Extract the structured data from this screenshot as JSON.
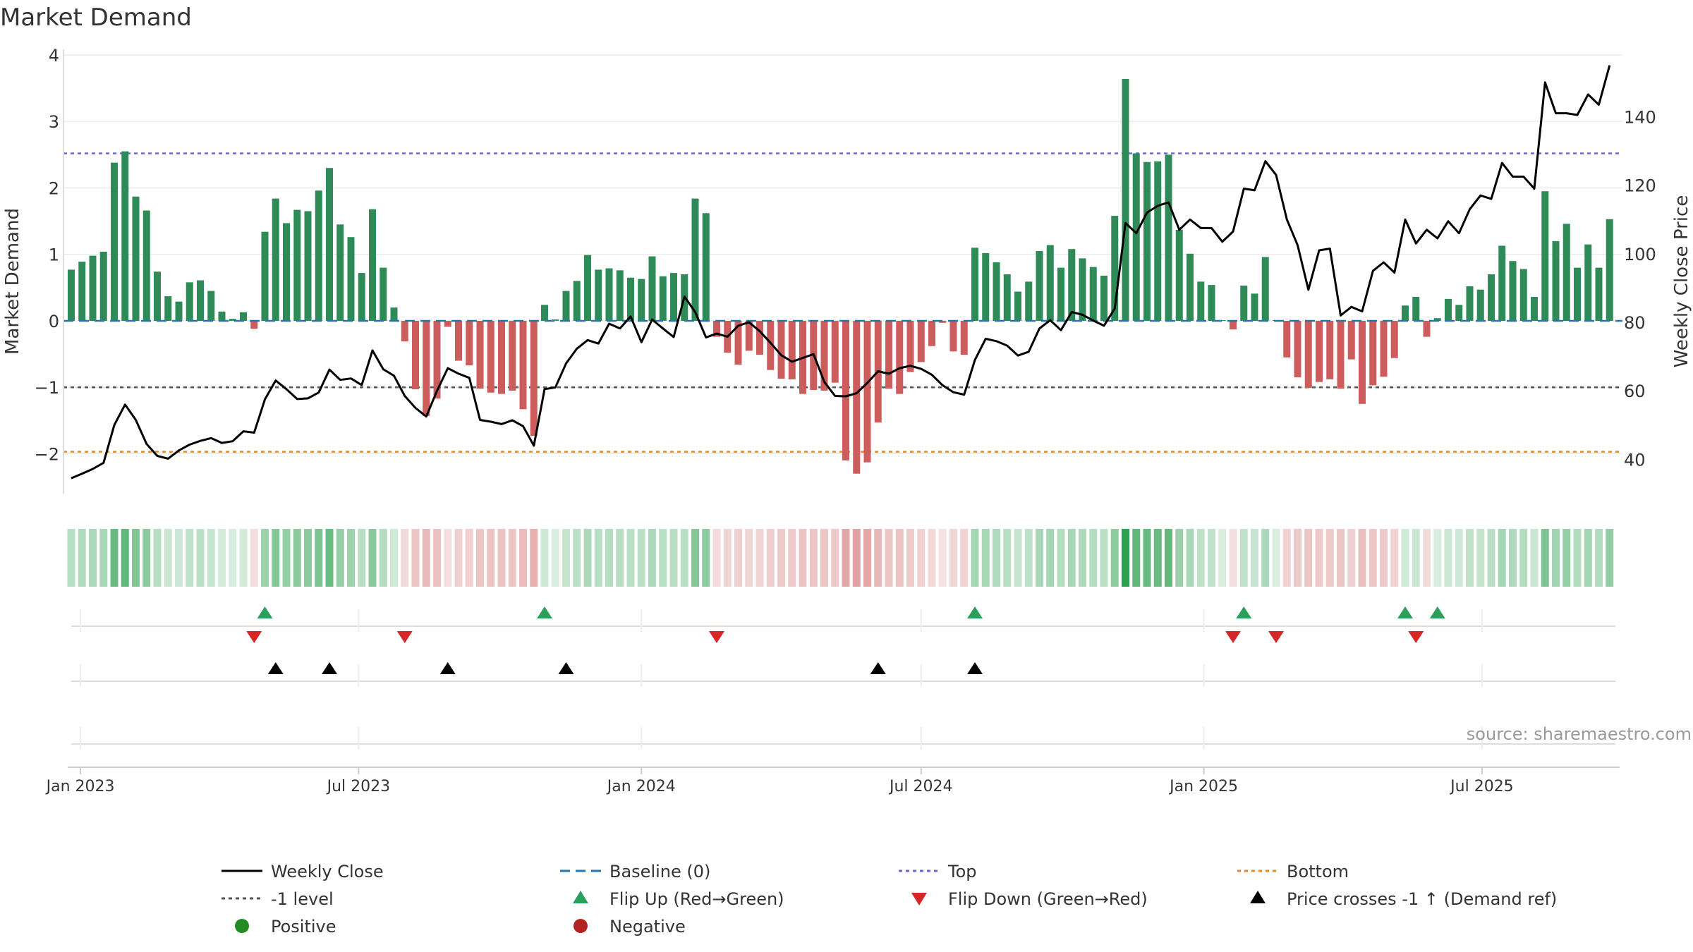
{
  "chart_data": {
    "type": "bar",
    "title": "Market Demand",
    "ylabel": "Market Demand",
    "y2label": "Weekly Close Price",
    "ylim": [
      -2.6,
      4.0
    ],
    "y2lim": [
      30,
      158
    ],
    "yticks": [
      -2,
      -1,
      0,
      1,
      2,
      3,
      4
    ],
    "y2ticks": [
      40,
      60,
      80,
      100,
      120,
      140
    ],
    "x_start": "2022-12-26",
    "x_step_days": 7,
    "x_tick_labels": [
      {
        "date": "2023-01-01",
        "label": "Jan 2023"
      },
      {
        "date": "2023-07-01",
        "label": "Jul 2023"
      },
      {
        "date": "2024-01-01",
        "label": "Jan 2024"
      },
      {
        "date": "2024-07-01",
        "label": "Jul 2024"
      },
      {
        "date": "2025-01-01",
        "label": "Jan 2025"
      },
      {
        "date": "2025-07-01",
        "label": "Jul 2025"
      }
    ],
    "reference_lines": {
      "baseline": 0,
      "top": 2.52,
      "bottom": -1.97,
      "level_minus_one": -1
    },
    "demand": [
      0.77,
      0.89,
      0.98,
      1.04,
      2.38,
      2.55,
      1.87,
      1.66,
      0.74,
      0.37,
      0.29,
      0.58,
      0.61,
      0.45,
      0.14,
      0.03,
      0.13,
      -0.12,
      1.34,
      1.84,
      1.47,
      1.67,
      1.65,
      1.96,
      2.3,
      1.45,
      1.26,
      0.72,
      1.68,
      0.8,
      0.2,
      -0.31,
      -1.03,
      -1.43,
      -1.17,
      -0.09,
      -0.6,
      -0.67,
      -1.02,
      -1.08,
      -1.1,
      -1.05,
      -1.33,
      -1.73,
      0.24,
      0.02,
      0.45,
      0.6,
      0.99,
      0.77,
      0.79,
      0.76,
      0.65,
      0.63,
      0.97,
      0.67,
      0.72,
      0.7,
      1.84,
      1.62,
      -0.24,
      -0.48,
      -0.66,
      -0.45,
      -0.51,
      -0.74,
      -0.87,
      -0.88,
      -1.1,
      -1.04,
      -1.05,
      -0.93,
      -2.1,
      -2.3,
      -2.13,
      -1.53,
      -1.02,
      -1.1,
      -0.77,
      -0.62,
      -0.38,
      -0.03,
      -0.46,
      -0.51,
      1.1,
      1.02,
      0.88,
      0.7,
      0.44,
      0.59,
      1.05,
      1.14,
      0.8,
      1.08,
      0.94,
      0.81,
      0.68,
      1.58,
      3.64,
      2.52,
      2.39,
      2.4,
      2.5,
      1.37,
      1.01,
      0.59,
      0.54,
      0.01,
      -0.13,
      0.53,
      0.41,
      0.96,
      0.01,
      -0.55,
      -0.85,
      -1.01,
      -0.92,
      -0.88,
      -1.02,
      -0.58,
      -1.25,
      -0.97,
      -0.84,
      -0.56,
      0.23,
      0.36,
      -0.24,
      0.04,
      0.33,
      0.24,
      0.52,
      0.47,
      0.7,
      1.13,
      0.9,
      0.78,
      0.36,
      1.95,
      1.2,
      1.46,
      0.8,
      1.15,
      0.8,
      1.53
    ],
    "price": [
      34.5,
      35.8,
      37.2,
      39.0,
      50.0,
      56.0,
      51.5,
      44.5,
      41.0,
      40.2,
      42.6,
      44.3,
      45.4,
      46.2,
      44.8,
      45.3,
      48.2,
      47.8,
      57.5,
      63.0,
      60.5,
      57.6,
      57.8,
      59.5,
      66.2,
      63.2,
      63.6,
      61.7,
      71.8,
      66.3,
      64.4,
      58.5,
      55.0,
      52.5,
      60.0,
      66.6,
      65.0,
      63.8,
      51.5,
      51.0,
      50.3,
      51.4,
      49.7,
      44.0,
      60.5,
      61.0,
      68.0,
      72.3,
      74.8,
      73.8,
      79.6,
      78.2,
      81.7,
      74.2,
      80.8,
      78.2,
      75.7,
      87.5,
      83.0,
      75.6,
      76.7,
      75.8,
      79.0,
      80.0,
      77.4,
      74.0,
      70.4,
      68.5,
      69.6,
      70.7,
      62.6,
      58.5,
      58.4,
      59.3,
      62.3,
      65.7,
      65.0,
      66.6,
      67.3,
      66.4,
      64.7,
      61.6,
      59.6,
      58.9,
      69.0,
      75.2,
      74.5,
      73.2,
      70.3,
      71.4,
      78.2,
      80.6,
      77.7,
      83.0,
      82.2,
      80.5,
      79.0,
      84.0,
      109.0,
      106.0,
      112.0,
      114.0,
      115.0,
      107.0,
      110.0,
      107.5,
      107.5,
      103.5,
      106.5,
      119.0,
      118.5,
      127.0,
      123.0,
      110.0,
      102.5,
      89.5,
      101.0,
      101.5,
      82.0,
      84.5,
      83.2,
      95.0,
      97.5,
      94.5,
      110.0,
      103.0,
      107.0,
      104.5,
      109.5,
      106.0,
      113.0,
      117.0,
      116.0,
      126.5,
      122.5,
      122.5,
      119.0,
      150.0,
      141.0,
      141.0,
      140.5,
      146.5,
      143.5,
      155.0
    ],
    "flip_up_idx": [
      18,
      44,
      84,
      109,
      124,
      127
    ],
    "flip_down_idx": [
      17,
      31,
      60,
      108,
      112,
      125
    ],
    "price_cross_idx": [
      19,
      24,
      35,
      46,
      75,
      84
    ],
    "source": "source: sharemaestro.com"
  },
  "legend": {
    "weekly_close": "Weekly Close",
    "baseline": "Baseline (0)",
    "top": "Top",
    "bottom": "Bottom",
    "level": "-1 level",
    "flip_up": "Flip Up (Red→Green)",
    "flip_down": "Flip Down (Green→Red)",
    "price_cross": "Price crosses -1 ↑ (Demand ref)",
    "positive": "Positive",
    "negative": "Negative"
  },
  "colors": {
    "positive_bar": "#2e8b57",
    "negative_bar": "#cd5c5c",
    "price_line": "#000000",
    "baseline": "#1f77b4",
    "top": "#6a6acd",
    "bottom": "#e8892b",
    "level": "#555555",
    "flip_up": "#2ca05a",
    "flip_down": "#d62728",
    "positive_dot": "#228b22",
    "negative_dot": "#b22222"
  }
}
